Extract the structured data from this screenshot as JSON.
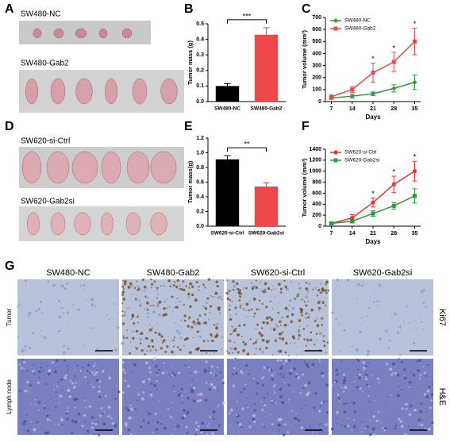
{
  "panel_labels": [
    "A",
    "B",
    "C",
    "D",
    "E",
    "F",
    "G"
  ],
  "photos": {
    "A": [
      "SW480-NC",
      "SW480-Gab2"
    ],
    "D": [
      "SW620-si-Ctrl",
      "SW620-Gab2si"
    ]
  },
  "histology": {
    "columns": [
      "SW480-NC",
      "SW480-Gab2",
      "SW620-si-Ctrl",
      "SW620-Gab2si"
    ],
    "rows": [
      "Tumor",
      "Lymph node"
    ],
    "stains": [
      "Ki67",
      "H&E"
    ]
  },
  "chart_data": [
    {
      "type": "bar",
      "ylabel": "Tumor mass (g)",
      "categories": [
        "SW480-NC",
        "SW480-Gab2"
      ],
      "values": [
        0.1,
        0.43
      ],
      "errors": [
        0.015,
        0.045
      ],
      "colors": [
        "#000000",
        "#f04848"
      ],
      "ylim": [
        0,
        0.5
      ],
      "yticks": [
        {
          "value": 0,
          "label": "0.0"
        },
        {
          "value": 0.1,
          "label": "0.1"
        },
        {
          "value": 0.2,
          "label": "0.2"
        },
        {
          "value": 0.3,
          "label": "0.3"
        },
        {
          "value": 0.4,
          "label": "0.4"
        },
        {
          "value": 0.5,
          "label": "0.5"
        }
      ],
      "annotation": "***"
    },
    {
      "type": "line",
      "ylabel": "Tumor volume (mm³)",
      "xlabel": "Days",
      "x": [
        7,
        14,
        21,
        28,
        35
      ],
      "xlim": [
        5,
        37
      ],
      "xticks": [
        7,
        14,
        21,
        28,
        35
      ],
      "ylim": [
        0,
        700
      ],
      "yticks": [
        0,
        100,
        200,
        300,
        400,
        500,
        600,
        700
      ],
      "legend": "upper left",
      "series": [
        {
          "name": "SW480-NC",
          "color": "#2e9a3e",
          "marker": "diamond",
          "values": [
            30,
            45,
            65,
            110,
            160
          ],
          "errors": [
            10,
            15,
            15,
            30,
            60
          ]
        },
        {
          "name": "SW480-Gab2",
          "color": "#f04848",
          "marker": "square",
          "values": [
            40,
            100,
            240,
            330,
            500
          ],
          "errors": [
            15,
            25,
            80,
            80,
            110
          ]
        }
      ],
      "annotations": [
        {
          "x": 21,
          "text": "*"
        },
        {
          "x": 28,
          "text": "*"
        },
        {
          "x": 35,
          "text": "*"
        }
      ]
    },
    {
      "type": "bar",
      "ylabel": "Tumor mass(g)",
      "categories": [
        "SW620-si-Ctrl",
        "SW620-Gab2si"
      ],
      "values": [
        0.91,
        0.54
      ],
      "errors": [
        0.05,
        0.05
      ],
      "colors": [
        "#000000",
        "#f04848"
      ],
      "ylim": [
        0,
        1.2
      ],
      "yticks": [
        {
          "value": 0,
          "label": "0.0"
        },
        {
          "value": 0.2,
          "label": "0.2"
        },
        {
          "value": 0.4,
          "label": "0.4"
        },
        {
          "value": 0.6,
          "label": "0.6"
        },
        {
          "value": 0.8,
          "label": "0.8"
        },
        {
          "value": 1,
          "label": "1.0"
        },
        {
          "value": 1.2,
          "label": "1.2"
        }
      ],
      "annotation": "**"
    },
    {
      "type": "line",
      "ylabel": "Tumor volume (mm³)",
      "xlabel": "Days",
      "x": [
        7,
        14,
        21,
        28,
        35
      ],
      "xlim": [
        5,
        37
      ],
      "xticks": [
        7,
        14,
        21,
        28,
        35
      ],
      "ylim": [
        0,
        1400
      ],
      "yticks": [
        0,
        200,
        400,
        600,
        800,
        1000,
        1200,
        1400
      ],
      "legend": "upper left",
      "series": [
        {
          "name": "SW620-si-Ctrl",
          "color": "#f03030",
          "marker": "circle",
          "values": [
            50,
            150,
            430,
            760,
            1000
          ],
          "errors": [
            20,
            60,
            80,
            150,
            180
          ]
        },
        {
          "name": "SW620-Gab2si",
          "color": "#2e9a3e",
          "marker": "square",
          "values": [
            50,
            90,
            230,
            370,
            550
          ],
          "errors": [
            15,
            30,
            50,
            60,
            130
          ]
        }
      ],
      "annotations": [
        {
          "x": 21,
          "text": "*"
        },
        {
          "x": 28,
          "text": "*"
        },
        {
          "x": 35,
          "text": "*"
        }
      ]
    }
  ]
}
